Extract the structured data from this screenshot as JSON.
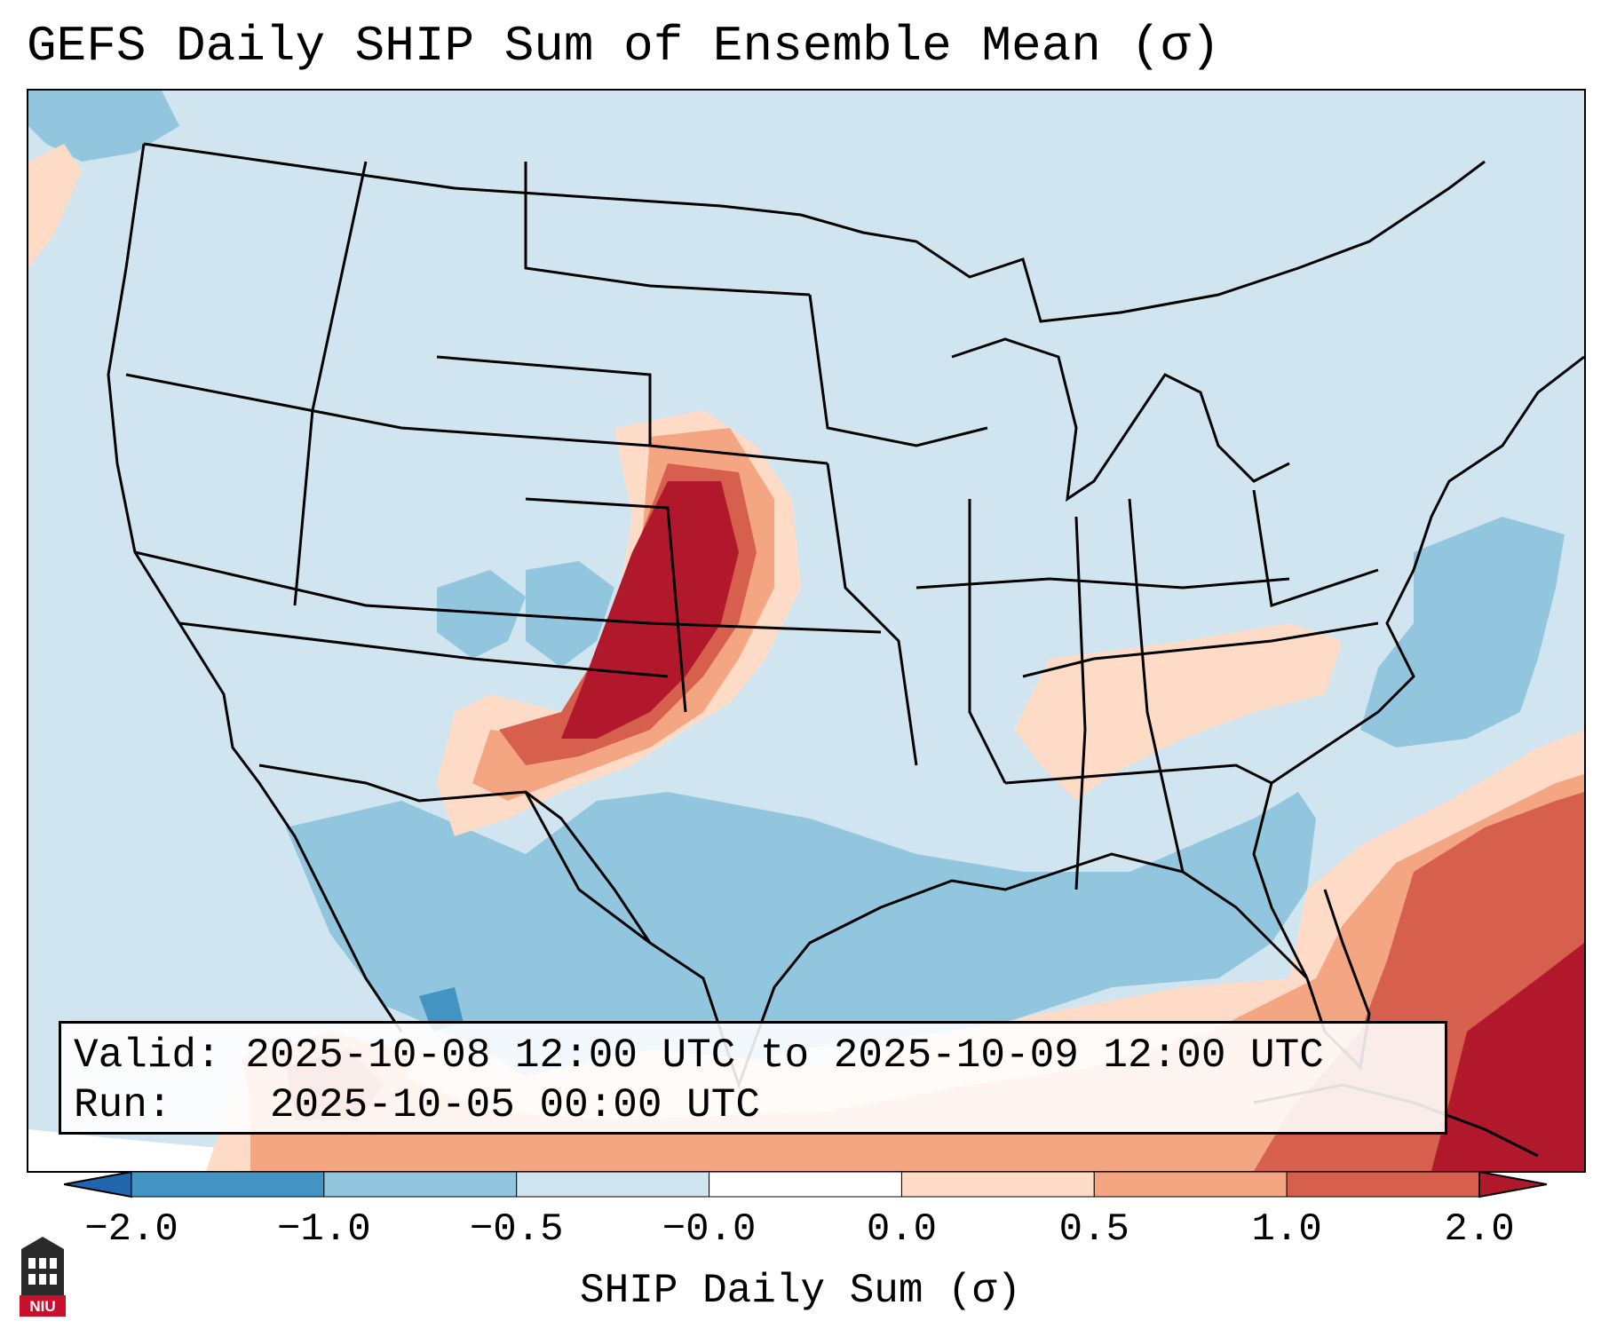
{
  "title": "GEFS Daily SHIP Sum of Ensemble Mean (σ)",
  "info": {
    "valid_label": "Valid:",
    "valid_value": "2025-10-08 12:00 UTC to 2025-10-09 12:00 UTC",
    "run_label": "Run:",
    "run_value": "2025-10-05 00:00 UTC"
  },
  "colorbar": {
    "label": "SHIP Daily Sum (σ)",
    "ticks": [
      "−2.0",
      "−1.0",
      "−0.5",
      "−0.0",
      "0.0",
      "0.5",
      "1.0",
      "2.0"
    ],
    "colors": [
      "#4393c3",
      "#92c5de",
      "#d1e5f0",
      "#ffffff",
      "#fddbc7",
      "#f4a582",
      "#d6604d"
    ],
    "under_color": "#2166ac",
    "over_color": "#b2182b"
  },
  "logo": {
    "text": "NIU",
    "icon": "university-tower-icon"
  },
  "map": {
    "background_color": "#d1e5f0"
  }
}
